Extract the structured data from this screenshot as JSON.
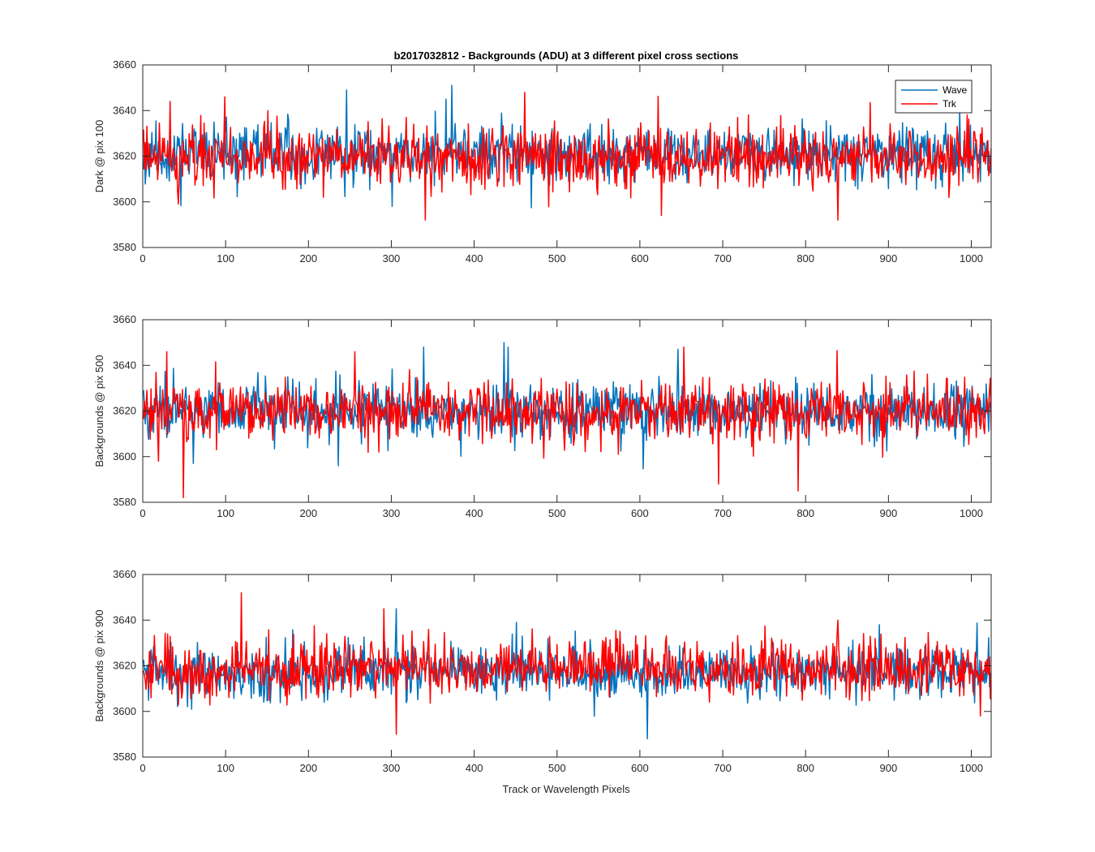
{
  "figure": {
    "title": "b2017032812 - Backgrounds (ADU) at 3 different pixel cross sections",
    "xlabel": "Track or Wavelength Pixels"
  },
  "legend": {
    "placement": "top-right of first panel",
    "entries": [
      {
        "name": "Wave",
        "color": "#0072BD"
      },
      {
        "name": "Trk",
        "color": "#FF0000"
      }
    ]
  },
  "chart_data": [
    {
      "type": "line",
      "title": "b2017032812 - Backgrounds (ADU) at 3 different pixel cross sections",
      "xlabel": "",
      "ylabel": "Dark @ pix 100",
      "xlim": [
        0,
        1024
      ],
      "ylim": [
        3580,
        3660
      ],
      "xticks": [
        0,
        100,
        200,
        300,
        400,
        500,
        600,
        700,
        800,
        900,
        1000
      ],
      "yticks": [
        3580,
        3600,
        3620,
        3640,
        3660
      ],
      "n_points": 1024,
      "series": [
        {
          "name": "Wave",
          "color": "#0072BD",
          "mean": 3621,
          "std": 7.5,
          "seed": 11,
          "peaks": [
            [
              245,
              3649
            ],
            [
              372,
              3651
            ],
            [
              365,
              3645
            ],
            [
              985,
              3640
            ],
            [
              300,
              3598
            ]
          ]
        },
        {
          "name": "Trk",
          "color": "#FF0000",
          "mean": 3619,
          "std": 8,
          "seed": 23,
          "peaks": [
            [
              32,
              3644
            ],
            [
              98,
              3646
            ],
            [
              340,
              3592
            ],
            [
              460,
              3648
            ],
            [
              838,
              3592
            ],
            [
              625,
              3594
            ]
          ]
        }
      ]
    },
    {
      "type": "line",
      "xlabel": "",
      "ylabel": "Backgrounds @ pix 500",
      "xlim": [
        0,
        1024
      ],
      "ylim": [
        3580,
        3660
      ],
      "xticks": [
        0,
        100,
        200,
        300,
        400,
        500,
        600,
        700,
        800,
        900,
        1000
      ],
      "yticks": [
        3580,
        3600,
        3620,
        3640,
        3660
      ],
      "n_points": 1024,
      "series": [
        {
          "name": "Wave",
          "color": "#0072BD",
          "mean": 3620,
          "std": 7.5,
          "seed": 37,
          "peaks": [
            [
              338,
              3648
            ],
            [
              435,
              3650
            ],
            [
              440,
              3648
            ],
            [
              645,
              3647
            ],
            [
              60,
              3597
            ],
            [
              235,
              3596
            ]
          ]
        },
        {
          "name": "Trk",
          "color": "#FF0000",
          "mean": 3620,
          "std": 8,
          "seed": 41,
          "peaks": [
            [
              28,
              3646
            ],
            [
              255,
              3646
            ],
            [
              652,
              3648
            ],
            [
              694,
              3588
            ],
            [
              790,
              3585
            ],
            [
              18,
              3598
            ]
          ]
        }
      ]
    },
    {
      "type": "line",
      "xlabel": "Track or Wavelength Pixels",
      "ylabel": "Backgrounds @ pix 900",
      "xlim": [
        0,
        1024
      ],
      "ylim": [
        3580,
        3660
      ],
      "xticks": [
        0,
        100,
        200,
        300,
        400,
        500,
        600,
        700,
        800,
        900,
        1000
      ],
      "yticks": [
        3580,
        3600,
        3620,
        3640,
        3660
      ],
      "n_points": 1024,
      "series": [
        {
          "name": "Wave",
          "color": "#0072BD",
          "mean": 3617,
          "std": 7,
          "seed": 53,
          "peaks": [
            [
              305,
              3645
            ],
            [
              608,
              3588
            ],
            [
              450,
              3639
            ]
          ]
        },
        {
          "name": "Trk",
          "color": "#FF0000",
          "mean": 3619,
          "std": 7.5,
          "seed": 67,
          "peaks": [
            [
              118,
              3652
            ],
            [
              305,
              3590
            ],
            [
              290,
              3645
            ],
            [
              838,
              3640
            ],
            [
              1010,
              3598
            ]
          ]
        }
      ]
    }
  ]
}
